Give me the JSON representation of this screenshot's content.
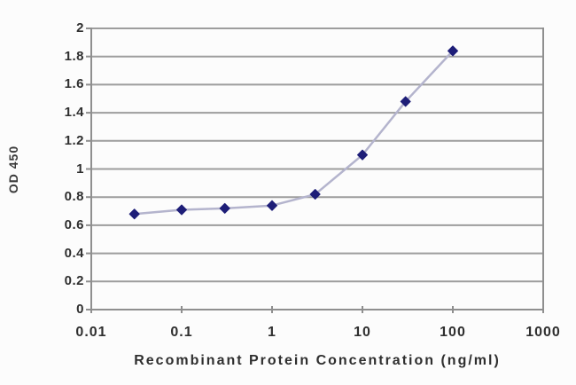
{
  "chart_data": {
    "type": "line",
    "title": "",
    "xlabel": "Recombinant Protein Concentration (ng/ml)",
    "ylabel": "OD 450",
    "x_scale": "log",
    "xlim": [
      0.01,
      1000
    ],
    "ylim": [
      0,
      2
    ],
    "x_ticks": [
      0.01,
      0.1,
      1,
      10,
      100,
      1000
    ],
    "x_tick_labels": [
      "0.01",
      "0.1",
      "1",
      "10",
      "100",
      "1000"
    ],
    "y_ticks": [
      0,
      0.2,
      0.4,
      0.6,
      0.8,
      1,
      1.2,
      1.4,
      1.6,
      1.8,
      2
    ],
    "y_tick_labels": [
      "0",
      "0.2",
      "0.4",
      "0.6",
      "0.8",
      "1",
      "1.2",
      "1.4",
      "1.6",
      "1.8",
      "2"
    ],
    "grid": "horizontal",
    "legend": "none",
    "series": [
      {
        "name": "OD450",
        "x": [
          0.03,
          0.1,
          0.3,
          1,
          3,
          10,
          30,
          100
        ],
        "y": [
          0.68,
          0.71,
          0.72,
          0.74,
          0.82,
          1.1,
          1.48,
          1.84
        ],
        "marker": "diamond",
        "marker_color": "#1e1e78",
        "line_color": "#b4b4cd"
      }
    ],
    "colors": {
      "gridline": "#9d9d9d",
      "axis_line": "#8f8f8f",
      "tick_text": "#2f2f2f",
      "background": "#fcfcfc"
    }
  }
}
